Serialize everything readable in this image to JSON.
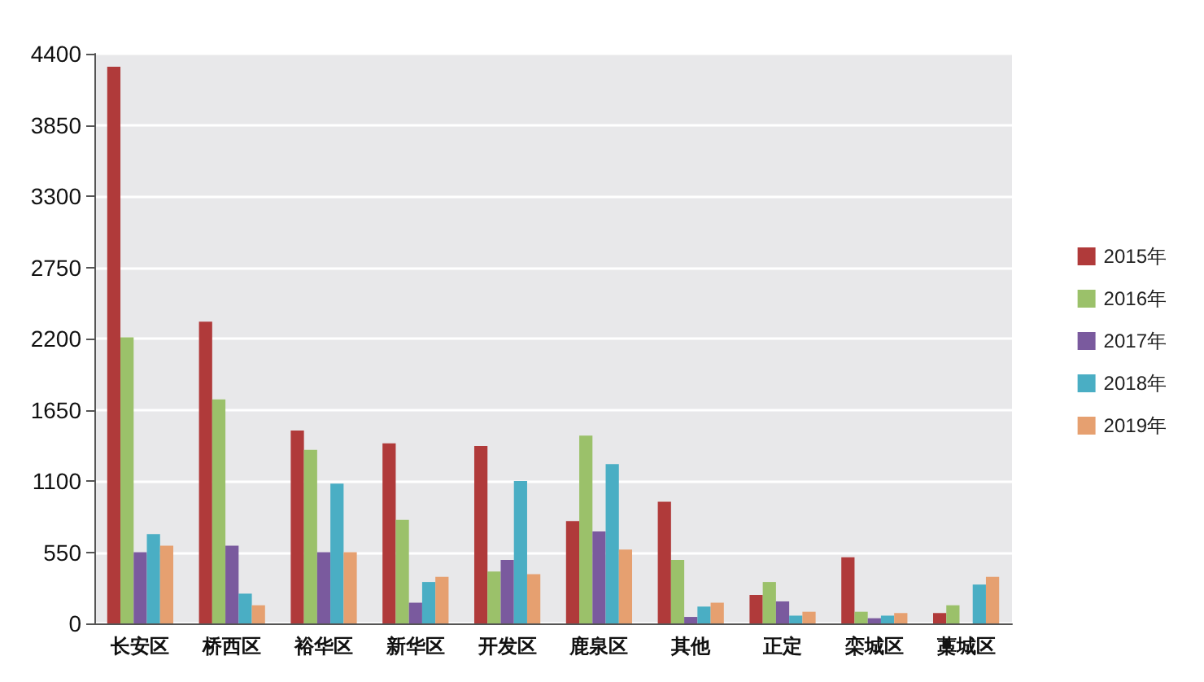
{
  "chart_data": {
    "type": "bar",
    "categories": [
      "长安区",
      "桥西区",
      "裕华区",
      "新华区",
      "开发区",
      "鹿泉区",
      "其他",
      "正定",
      "栾城区",
      "藁城区"
    ],
    "series": [
      {
        "name": "2015年",
        "color": "#b03a3a",
        "values": [
          4300,
          2330,
          1490,
          1390,
          1370,
          790,
          940,
          220,
          510,
          80
        ]
      },
      {
        "name": "2016年",
        "color": "#9bc16a",
        "values": [
          2210,
          1730,
          1340,
          800,
          400,
          1450,
          490,
          320,
          90,
          140
        ]
      },
      {
        "name": "2017年",
        "color": "#7a5a9e",
        "values": [
          550,
          600,
          550,
          160,
          490,
          710,
          50,
          170,
          40,
          0
        ]
      },
      {
        "name": "2018年",
        "color": "#4aaec4",
        "values": [
          690,
          230,
          1080,
          320,
          1100,
          1230,
          130,
          60,
          60,
          300
        ]
      },
      {
        "name": "2019年",
        "color": "#e6a070",
        "values": [
          600,
          140,
          550,
          360,
          380,
          570,
          160,
          90,
          80,
          360
        ]
      }
    ],
    "ylim": [
      0,
      4400
    ],
    "yticks": [
      0,
      550,
      1100,
      1650,
      2200,
      2750,
      3300,
      3850,
      4400
    ],
    "grid": "y",
    "legend": "right"
  }
}
